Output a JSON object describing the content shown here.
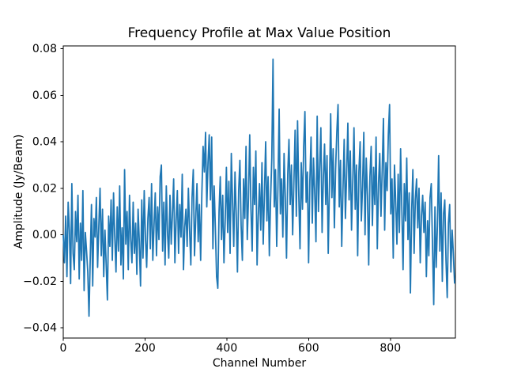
{
  "chart_data": {
    "type": "line",
    "title": "Frequency Profile at Max Value Position",
    "xlabel": "Channel Number",
    "ylabel": "Amplitude (Jy/Beam)",
    "line_color": "#1f77b4",
    "background_color": "#ffffff",
    "grid": "off",
    "legend": "none",
    "xlim": [
      0,
      959
    ],
    "ylim": [
      -0.0444,
      0.0812
    ],
    "xticks": {
      "values": [
        0,
        200,
        400,
        600,
        800
      ],
      "labels": [
        "0",
        "200",
        "400",
        "600",
        "800"
      ]
    },
    "yticks": {
      "values": [
        0.08,
        0.06,
        0.04,
        0.02,
        0.0,
        -0.02,
        -0.04
      ],
      "labels": [
        "0.08",
        "0.06",
        "0.04",
        "0.02",
        "0.00",
        "−0.02",
        "−0.04"
      ]
    },
    "x_start": 0,
    "x_step": 3,
    "values": [
      0.0,
      -0.012,
      0.008,
      -0.018,
      0.014,
      0.002,
      -0.021,
      0.022,
      -0.008,
      -0.015,
      0.01,
      -0.003,
      0.017,
      -0.019,
      0.005,
      -0.011,
      0.019,
      -0.024,
      0.001,
      -0.007,
      -0.016,
      -0.035,
      -0.01,
      0.013,
      -0.022,
      0.007,
      -0.001,
      0.016,
      -0.014,
      0.004,
      0.02,
      -0.009,
      0.011,
      -0.018,
      0.002,
      -0.013,
      -0.028,
      0.008,
      -0.005,
      0.015,
      -0.011,
      0.018,
      -0.001,
      -0.016,
      0.012,
      -0.007,
      0.021,
      -0.013,
      0.003,
      -0.019,
      0.028,
      -0.004,
      0.01,
      -0.015,
      0.017,
      -0.002,
      -0.012,
      0.014,
      -0.008,
      0.005,
      -0.017,
      0.011,
      -0.003,
      -0.022,
      0.015,
      -0.01,
      0.019,
      -0.001,
      -0.014,
      0.007,
      0.016,
      -0.006,
      0.022,
      -0.011,
      0.004,
      0.018,
      -0.009,
      0.012,
      -0.002,
      0.025,
      0.03,
      -0.007,
      0.014,
      -0.013,
      0.021,
      0.001,
      -0.01,
      0.017,
      -0.004,
      0.009,
      0.024,
      -0.012,
      0.006,
      0.019,
      -0.008,
      0.013,
      -0.001,
      0.026,
      -0.015,
      0.003,
      0.011,
      -0.005,
      0.02,
      0.002,
      -0.013,
      0.016,
      0.028,
      -0.009,
      0.007,
      0.022,
      -0.003,
      0.013,
      -0.011,
      0.018,
      0.038,
      0.027,
      0.044,
      0.012,
      0.031,
      0.043,
      0.015,
      0.042,
      -0.006,
      0.021,
      0.003,
      -0.018,
      -0.023,
      0.01,
      0.025,
      -0.002,
      0.017,
      -0.012,
      0.006,
      0.029,
      0.001,
      0.023,
      -0.008,
      0.035,
      0.014,
      -0.005,
      0.027,
      0.009,
      -0.016,
      0.019,
      0.032,
      0.004,
      -0.011,
      0.024,
      0.007,
      0.038,
      -0.002,
      0.016,
      0.043,
      0.011,
      -0.007,
      0.029,
      0.013,
      0.036,
      -0.013,
      0.008,
      0.022,
      0.002,
      0.031,
      -0.004,
      0.018,
      0.04,
      0.006,
      0.025,
      -0.009,
      0.015,
      0.033,
      0.0755,
      0.012,
      0.028,
      -0.005,
      0.02,
      0.054,
      0.009,
      0.024,
      -0.001,
      0.035,
      0.016,
      -0.01,
      0.026,
      0.041,
      0.013,
      0.03,
      0.0,
      0.022,
      0.045,
      0.008,
      0.049,
      0.017,
      -0.006,
      0.031,
      0.011,
      0.038,
      0.053,
      0.014,
      0.027,
      -0.012,
      0.023,
      0.042,
      0.005,
      0.033,
      0.018,
      -0.003,
      0.051,
      0.01,
      0.029,
      0.046,
      0.001,
      0.024,
      0.039,
      0.013,
      0.034,
      -0.008,
      0.021,
      0.052,
      0.016,
      0.037,
      0.003,
      0.028,
      0.044,
      0.056,
      0.012,
      0.032,
      -0.005,
      0.019,
      0.041,
      0.007,
      0.026,
      0.048,
      0.015,
      0.036,
      0.002,
      0.023,
      0.046,
      0.011,
      0.03,
      -0.009,
      0.027,
      0.04,
      0.006,
      0.021,
      0.044,
      0.0,
      0.033,
      0.017,
      -0.013,
      0.025,
      0.038,
      0.004,
      0.029,
      0.013,
      0.042,
      -0.006,
      0.022,
      0.035,
      0.008,
      0.028,
      0.05,
      0.002,
      0.031,
      0.019,
      0.043,
      0.056,
      0.009,
      0.024,
      -0.01,
      0.03,
      0.014,
      -0.004,
      0.026,
      0.001,
      0.037,
      0.011,
      -0.015,
      0.022,
      0.006,
      0.033,
      -0.002,
      0.018,
      -0.025,
      0.01,
      0.028,
      -0.008,
      0.015,
      0.024,
      0.003,
      0.02,
      -0.012,
      0.008,
      0.017,
      0.001,
      0.014,
      -0.018,
      0.006,
      -0.009,
      0.016,
      0.022,
      -0.005,
      -0.03,
      0.012,
      -0.014,
      0.004,
      0.034,
      -0.007,
      0.018,
      -0.02,
      0.009,
      0.015,
      -0.011,
      -0.027,
      0.005,
      0.013,
      -0.016,
      0.002,
      -0.008,
      -0.021
    ]
  }
}
